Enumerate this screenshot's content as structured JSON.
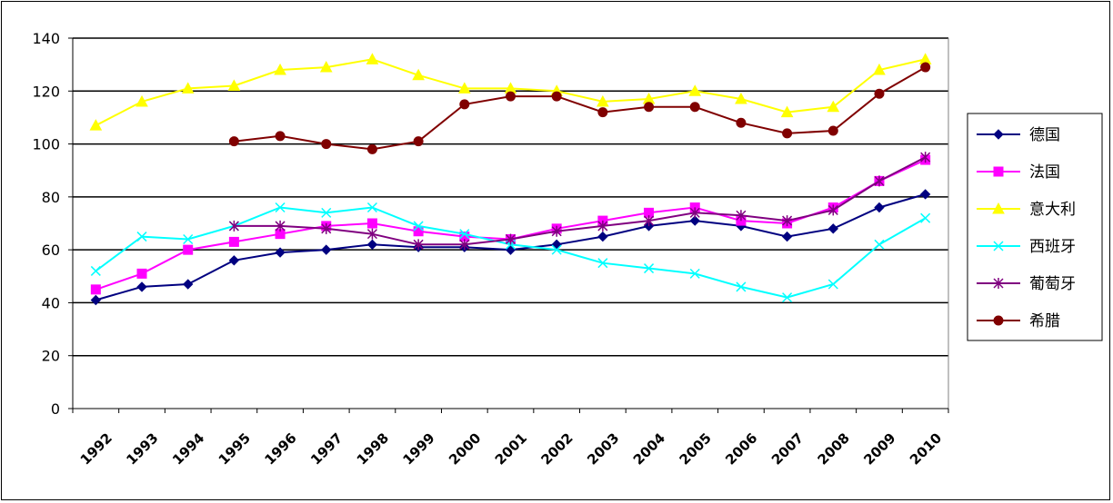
{
  "chart_data": {
    "type": "line",
    "title": "",
    "xlabel": "",
    "ylabel": "",
    "ylim": [
      0,
      140
    ],
    "yticks": [
      0,
      20,
      40,
      60,
      80,
      100,
      120,
      140
    ],
    "grid": "horizontal",
    "legend_position": "right",
    "x": [
      "1992",
      "1993",
      "1994",
      "1995",
      "1996",
      "1997",
      "1998",
      "1999",
      "2000",
      "2001",
      "2002",
      "2003",
      "2004",
      "2005",
      "2006",
      "2007",
      "2008",
      "2009",
      "2010"
    ],
    "series": [
      {
        "name": "德国",
        "color": "#000080",
        "marker": "diamond",
        "values": [
          41,
          46,
          47,
          56,
          59,
          60,
          62,
          61,
          61,
          60,
          62,
          65,
          69,
          71,
          69,
          65,
          68,
          76,
          81
        ]
      },
      {
        "name": "法国",
        "color": "#FF00FF",
        "marker": "square",
        "values": [
          45,
          51,
          60,
          63,
          66,
          69,
          70,
          67,
          65,
          64,
          68,
          71,
          74,
          76,
          71,
          70,
          76,
          86,
          94
        ]
      },
      {
        "name": "意大利",
        "color": "#FFFF00",
        "marker": "triangle",
        "values": [
          107,
          116,
          121,
          122,
          128,
          129,
          132,
          126,
          121,
          121,
          120,
          116,
          117,
          120,
          117,
          112,
          114,
          128,
          132
        ]
      },
      {
        "name": "西班牙",
        "color": "#00FFFF",
        "marker": "x",
        "values": [
          52,
          65,
          64,
          69,
          76,
          74,
          76,
          69,
          66,
          62,
          60,
          55,
          53,
          51,
          46,
          42,
          47,
          62,
          72
        ]
      },
      {
        "name": "葡萄牙",
        "color": "#800080",
        "marker": "asterisk",
        "values": [
          null,
          null,
          null,
          69,
          69,
          68,
          66,
          62,
          62,
          64,
          67,
          69,
          71,
          74,
          73,
          71,
          75,
          86,
          95
        ]
      },
      {
        "name": "希腊",
        "color": "#800000",
        "marker": "circle",
        "values": [
          null,
          null,
          null,
          101,
          103,
          100,
          98,
          101,
          115,
          118,
          118,
          112,
          114,
          114,
          108,
          104,
          105,
          119,
          129
        ]
      }
    ]
  }
}
